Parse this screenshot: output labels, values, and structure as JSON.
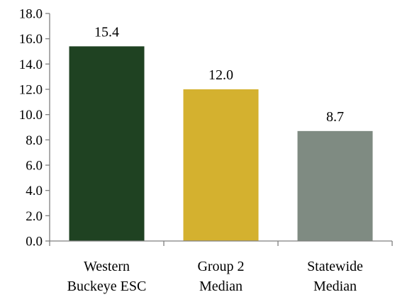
{
  "chart_data": {
    "type": "bar",
    "categories": [
      [
        "Western",
        "Buckeye ESC"
      ],
      [
        "Group 2",
        "Median"
      ],
      [
        "Statewide",
        "Median"
      ]
    ],
    "values": [
      15.4,
      12.0,
      8.7
    ],
    "value_labels": [
      "15.4",
      "12.0",
      "8.7"
    ],
    "colors": [
      "#1f4222",
      "#d4b12f",
      "#7f8b82"
    ],
    "ylim": [
      0,
      18
    ],
    "yticks": [
      0,
      2,
      4,
      6,
      8,
      10,
      12,
      14,
      16,
      18
    ],
    "ytick_labels": [
      "0.0",
      "2.0",
      "4.0",
      "6.0",
      "8.0",
      "10.0",
      "12.0",
      "14.0",
      "16.0",
      "18.0"
    ],
    "title": "",
    "xlabel": "",
    "ylabel": "",
    "grid": false,
    "legend": "none"
  }
}
